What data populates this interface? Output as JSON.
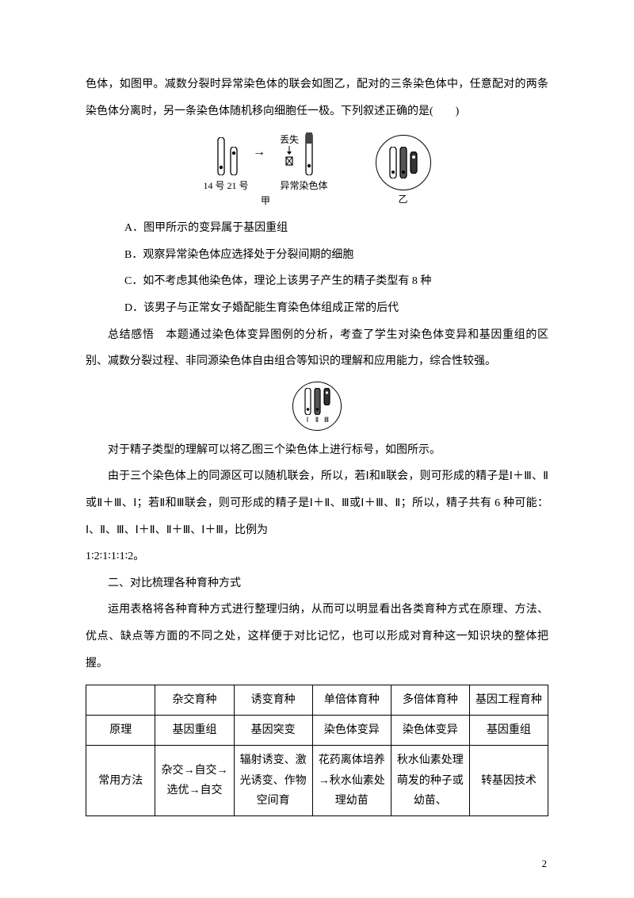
{
  "intro1": "色体，如图甲。减数分裂时异常染色体的联会如图乙，配对的三条染色体中，任意配对的两条染色体分离时，另一条染色体随机移向细胞任一极。下列叙述正确的是(　　)",
  "fig1_label_left": "14 号 21 号",
  "fig1_label_jia": "甲",
  "fig1_label_loss": "丢失",
  "fig1_label_abnormal": "异常染色体",
  "fig1_label_yi": "乙",
  "optA": "A．图甲所示的变异属于基因重组",
  "optB": "B．观察异常染色体应选择处于分裂间期的细胞",
  "optC": "C．如不考虑其他染色体，理论上该男子产生的精子类型有 8 种",
  "optD": "D．该男子与正常女子婚配能生育染色体组成正常的后代",
  "summary": "总结感悟　本题通过染色体变异图例的分析，考查了学生对染色体变异和基因重组的区别、减数分裂过程、非同源染色体自由组合等知识的理解和应用能力，综合性较强。",
  "expl1": "对于精子类型的理解可以将乙图三个染色体上进行标号，如图所示。",
  "expl2": "由于三个染色体上的同源区可以随机联会，所以，若Ⅰ和Ⅱ联会，则可形成的精子是Ⅰ＋Ⅲ、Ⅱ或Ⅱ＋Ⅲ、Ⅰ；若Ⅱ和Ⅲ联会，则可形成的精子是Ⅰ＋Ⅱ、Ⅲ或Ⅰ＋Ⅲ、Ⅱ；所以，精子共有 6 种可能：Ⅰ、Ⅱ、Ⅲ、Ⅰ＋Ⅱ、Ⅱ＋Ⅲ、Ⅰ＋Ⅲ，比例为",
  "expl3": "1∶2∶1∶1∶1∶2。",
  "heading2": "二、对比梳理各种育种方式",
  "intro2": "运用表格将各种育种方式进行整理归纳，从而可以明显看出各类育种方式在原理、方法、优点、缺点等方面的不同之处，这样便于对比记忆，也可以形成对育种这一知识块的整体把握。",
  "table": {
    "headers": [
      "",
      "杂交育种",
      "诱变育种",
      "单倍体育种",
      "多倍体育种",
      "基因工程育种"
    ],
    "rows": [
      [
        "原理",
        "基因重组",
        "基因突变",
        "染色体变异",
        "染色体变异",
        "基因重组"
      ],
      [
        "常用方法",
        "杂交→自交→选优→自交",
        "辐射诱变、激光诱变、作物空间育",
        "花药离体培养→秋水仙素处理幼苗",
        "秋水仙素处理萌发的种子或幼苗、",
        "转基因技术"
      ]
    ],
    "col_widths": [
      "15%",
      "17%",
      "17%",
      "17%",
      "17%",
      "17%"
    ]
  },
  "page_number": "2",
  "roman": {
    "I": "Ⅰ",
    "II": "Ⅱ",
    "III": "Ⅲ"
  }
}
